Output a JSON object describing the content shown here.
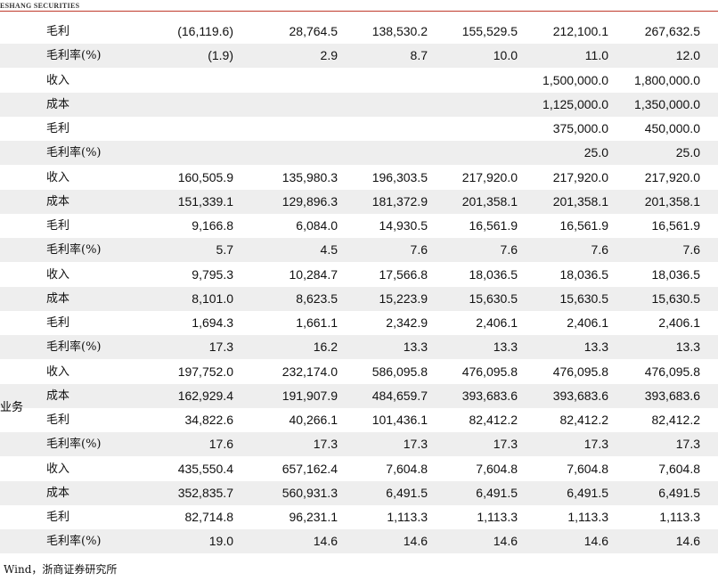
{
  "header": {
    "brand": "ESHANG SECURITIES"
  },
  "table": {
    "group_label": "业务",
    "rows": [
      [
        "毛利",
        "(16,119.6)",
        "28,764.5",
        "138,530.2",
        "155,529.5",
        "212,100.1",
        "267,632.5"
      ],
      [
        "毛利率(%)",
        "(1.9)",
        "2.9",
        "8.7",
        "10.0",
        "11.0",
        "12.0"
      ],
      [
        "收入",
        null,
        null,
        null,
        null,
        "1,500,000.0",
        "1,800,000.0"
      ],
      [
        "成本",
        null,
        null,
        null,
        null,
        "1,125,000.0",
        "1,350,000.0"
      ],
      [
        "毛利",
        null,
        null,
        null,
        null,
        "375,000.0",
        "450,000.0"
      ],
      [
        "毛利率(%)",
        null,
        null,
        null,
        null,
        "25.0",
        "25.0"
      ],
      [
        "收入",
        "160,505.9",
        "135,980.3",
        "196,303.5",
        "217,920.0",
        "217,920.0",
        "217,920.0"
      ],
      [
        "成本",
        "151,339.1",
        "129,896.3",
        "181,372.9",
        "201,358.1",
        "201,358.1",
        "201,358.1"
      ],
      [
        "毛利",
        "9,166.8",
        "6,084.0",
        "14,930.5",
        "16,561.9",
        "16,561.9",
        "16,561.9"
      ],
      [
        "毛利率(%)",
        "5.7",
        "4.5",
        "7.6",
        "7.6",
        "7.6",
        "7.6"
      ],
      [
        "收入",
        "9,795.3",
        "10,284.7",
        "17,566.8",
        "18,036.5",
        "18,036.5",
        "18,036.5"
      ],
      [
        "成本",
        "8,101.0",
        "8,623.5",
        "15,223.9",
        "15,630.5",
        "15,630.5",
        "15,630.5"
      ],
      [
        "毛利",
        "1,694.3",
        "1,661.1",
        "2,342.9",
        "2,406.1",
        "2,406.1",
        "2,406.1"
      ],
      [
        "毛利率(%)",
        "17.3",
        "16.2",
        "13.3",
        "13.3",
        "13.3",
        "13.3"
      ],
      [
        "收入",
        "197,752.0",
        "232,174.0",
        "586,095.8",
        "476,095.8",
        "476,095.8",
        "476,095.8"
      ],
      [
        "成本",
        "162,929.4",
        "191,907.9",
        "484,659.7",
        "393,683.6",
        "393,683.6",
        "393,683.6"
      ],
      [
        "毛利",
        "34,822.6",
        "40,266.1",
        "101,436.1",
        "82,412.2",
        "82,412.2",
        "82,412.2"
      ],
      [
        "毛利率(%)",
        "17.6",
        "17.3",
        "17.3",
        "17.3",
        "17.3",
        "17.3"
      ],
      [
        "收入",
        "435,550.4",
        "657,162.4",
        "7,604.8",
        "7,604.8",
        "7,604.8",
        "7,604.8"
      ],
      [
        "成本",
        "352,835.7",
        "560,931.3",
        "6,491.5",
        "6,491.5",
        "6,491.5",
        "6,491.5"
      ],
      [
        "毛利",
        "82,714.8",
        "96,231.1",
        "1,113.3",
        "1,113.3",
        "1,113.3",
        "1,113.3"
      ],
      [
        "毛利率(%)",
        "19.0",
        "14.6",
        "14.6",
        "14.6",
        "14.6",
        "14.6"
      ]
    ]
  },
  "footer": {
    "source": "Wind，浙商证券研究所"
  }
}
